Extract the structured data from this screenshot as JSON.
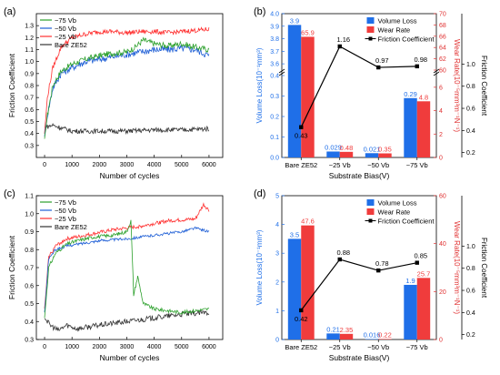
{
  "figure": {
    "panels": [
      {
        "label": "(a)"
      },
      {
        "label": "(b)"
      },
      {
        "label": "(c)"
      },
      {
        "label": "(d)"
      }
    ]
  },
  "chart_data": [
    {
      "panel": "(a)",
      "type": "line",
      "xlabel": "Number of cycles",
      "ylabel": "Friction Coefficient",
      "xlim": [
        -300,
        6500
      ],
      "ylim": [
        0.2,
        1.4
      ],
      "xticks": [
        0,
        1000,
        2000,
        3000,
        4000,
        5000,
        6000
      ],
      "yticks": [
        0.3,
        0.4,
        0.5,
        0.6,
        0.7,
        0.8,
        0.9,
        1.0,
        1.1,
        1.2,
        1.3
      ],
      "legend_position": "top-left",
      "series": [
        {
          "name": "−75 Vb",
          "color": "#2ca02c",
          "x": [
            0,
            100,
            300,
            600,
            1000,
            1500,
            2000,
            2500,
            3000,
            3300,
            3600,
            4000,
            4500,
            5000,
            5500,
            6000
          ],
          "y": [
            0.35,
            0.55,
            0.8,
            0.92,
            0.98,
            1.02,
            1.05,
            1.07,
            1.08,
            1.12,
            1.18,
            1.15,
            1.13,
            1.15,
            1.12,
            1.1
          ]
        },
        {
          "name": "−50 Vb",
          "color": "#1f5fd6",
          "x": [
            0,
            100,
            300,
            600,
            1000,
            1500,
            2000,
            2500,
            3000,
            3500,
            4000,
            4500,
            5000,
            5500,
            6000
          ],
          "y": [
            0.38,
            0.55,
            0.78,
            0.9,
            0.95,
            1.0,
            1.02,
            1.04,
            1.06,
            1.08,
            1.1,
            1.1,
            1.11,
            1.1,
            1.05
          ]
        },
        {
          "name": "−25 Vb",
          "color": "#ff3030",
          "x": [
            0,
            100,
            300,
            600,
            1000,
            1500,
            2000,
            2500,
            3000,
            3500,
            4000,
            4500,
            5000,
            5500,
            6000
          ],
          "y": [
            0.4,
            0.7,
            0.95,
            1.12,
            1.2,
            1.23,
            1.25,
            1.25,
            1.24,
            1.25,
            1.25,
            1.24,
            1.25,
            1.26,
            1.27
          ]
        },
        {
          "name": "Bare ZE52",
          "color": "#333333",
          "x": [
            0,
            300,
            700,
            1000,
            2000,
            3000,
            4000,
            5000,
            6000
          ],
          "y": [
            0.45,
            0.47,
            0.44,
            0.42,
            0.42,
            0.42,
            0.43,
            0.43,
            0.44
          ]
        }
      ]
    },
    {
      "panel": "(b)",
      "type": "bar",
      "xlabel": "Substrate Bias(V)",
      "ylabel_left": "Volume Loss(10⁻¹mm³)",
      "ylabel_right1": "Wear Rate(10⁻⁵mm³m⁻¹N⁻¹)",
      "ylabel_right2": "Friction Coefficient",
      "categories": [
        "Bare ZE52",
        "−25 Vb",
        "−50 Vb",
        "−75 Vb"
      ],
      "left_ticks_low": [
        "0.0",
        "0.1",
        "0.2",
        "0.3",
        "0.4"
      ],
      "left_ticks_high": [
        "3.6",
        "3.7",
        "3.8",
        "3.9",
        "4.0"
      ],
      "right1_ticks_low": [
        "0",
        "2",
        "4",
        "6"
      ],
      "right1_ticks_high": [
        "60",
        "62",
        "64",
        "66",
        "68",
        "70"
      ],
      "right2_ticks": [
        "0.2",
        "0.4",
        "0.6",
        "0.8",
        "1.0"
      ],
      "legend_position": "top-right",
      "legend": [
        "Volume Loss",
        "Wear Rate",
        "Friction Coefficient"
      ],
      "series": [
        {
          "name": "Volume Loss",
          "color": "#1f6fe8",
          "values": [
            3.9,
            0.029,
            0.021,
            0.29
          ],
          "labels": [
            "3.9",
            "0.029",
            "0.021",
            "0.29"
          ]
        },
        {
          "name": "Wear Rate",
          "color": "#f03c3c",
          "values": [
            65.9,
            0.48,
            0.35,
            4.8
          ],
          "labels": [
            "65.9",
            "0.48",
            "0.35",
            "4.8"
          ]
        },
        {
          "name": "Friction Coefficient",
          "color": "#000000",
          "values": [
            0.43,
            1.16,
            0.97,
            0.98
          ],
          "labels": [
            "0.43",
            "1.16",
            "0.97",
            "0.98"
          ]
        }
      ]
    },
    {
      "panel": "(c)",
      "type": "line",
      "xlabel": "Number of cycles",
      "ylabel": "Friction Coefficient",
      "xlim": [
        -300,
        6500
      ],
      "ylim": [
        0.3,
        1.1
      ],
      "xticks": [
        0,
        1000,
        2000,
        3000,
        4000,
        5000,
        6000
      ],
      "yticks": [
        0.3,
        0.4,
        0.5,
        0.6,
        0.7,
        0.8,
        0.9,
        1.0,
        1.1
      ],
      "legend_position": "top-left",
      "series": [
        {
          "name": "−75 Vb",
          "color": "#2ca02c",
          "x": [
            0,
            150,
            400,
            800,
            1200,
            1800,
            2500,
            3000,
            3150,
            3250,
            3400,
            3600,
            4000,
            4500,
            5000,
            5500,
            6000
          ],
          "y": [
            0.42,
            0.7,
            0.78,
            0.83,
            0.85,
            0.87,
            0.88,
            0.9,
            0.96,
            0.55,
            0.65,
            0.5,
            0.47,
            0.46,
            0.45,
            0.46,
            0.47
          ]
        },
        {
          "name": "−50 Vb",
          "color": "#1f5fd6",
          "x": [
            0,
            150,
            400,
            800,
            1200,
            2000,
            3000,
            4000,
            5000,
            5500,
            6000
          ],
          "y": [
            0.45,
            0.75,
            0.8,
            0.82,
            0.83,
            0.85,
            0.86,
            0.88,
            0.9,
            0.92,
            0.9
          ]
        },
        {
          "name": "−25 Vb",
          "color": "#ff3030",
          "x": [
            0,
            150,
            400,
            800,
            1500,
            2500,
            3500,
            4500,
            5500,
            5800,
            6000
          ],
          "y": [
            0.47,
            0.76,
            0.82,
            0.86,
            0.88,
            0.91,
            0.93,
            0.96,
            0.97,
            1.05,
            1.02
          ]
        },
        {
          "name": "Bare ZE52",
          "color": "#333333",
          "x": [
            0,
            200,
            500,
            800,
            1200,
            2000,
            3000,
            4000,
            5000,
            6000
          ],
          "y": [
            0.42,
            0.38,
            0.35,
            0.38,
            0.36,
            0.38,
            0.4,
            0.42,
            0.44,
            0.45
          ]
        }
      ]
    },
    {
      "panel": "(d)",
      "type": "bar",
      "xlabel": "Substrate Bias(V)",
      "ylabel_left": "Volume Loss(10⁻¹mm³)",
      "ylabel_right1": "Wear Rate(10⁻⁵mm³m⁻¹N⁻¹)",
      "ylabel_right2": "Friction Coefficient",
      "categories": [
        "Bare ZE52",
        "−25 Vb",
        "−50 Vb",
        "−75 Vb"
      ],
      "left_ticks": [
        "0",
        "1",
        "2",
        "3",
        "4",
        "5"
      ],
      "right1_ticks": [
        "0",
        "20",
        "40",
        "60"
      ],
      "right2_ticks": [
        "0.2",
        "0.4",
        "0.6",
        "0.8",
        "1.0"
      ],
      "legend_position": "top-right",
      "legend": [
        "Volume Loss",
        "Wear Rate",
        "Friction Coefficient"
      ],
      "series": [
        {
          "name": "Volume Loss",
          "color": "#1f6fe8",
          "values": [
            3.5,
            0.21,
            0.016,
            1.9
          ],
          "labels": [
            "3.5",
            "0.21",
            "0.016",
            "1.9"
          ]
        },
        {
          "name": "Wear Rate",
          "color": "#f03c3c",
          "values": [
            47.6,
            2.35,
            0.22,
            25.7
          ],
          "labels": [
            "47.6",
            "2.35",
            "0.22",
            "25.7"
          ]
        },
        {
          "name": "Friction Coefficient",
          "color": "#000000",
          "values": [
            0.42,
            0.88,
            0.78,
            0.85
          ],
          "labels": [
            "0.42",
            "0.88",
            "0.78",
            "0.85"
          ]
        }
      ]
    }
  ]
}
